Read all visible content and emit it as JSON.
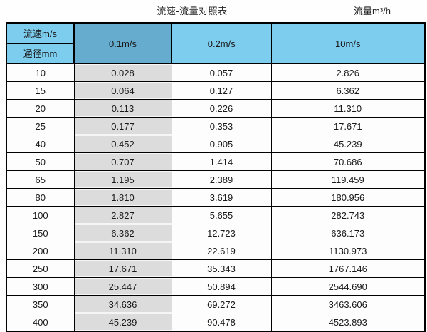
{
  "titles": {
    "main": "流速-流量对照表",
    "unit": "流量m³/h"
  },
  "table": {
    "corner_top": "流速m/s",
    "corner_bottom": "通径mm",
    "columns": [
      "0.1m/s",
      "0.2m/s",
      "10m/s"
    ],
    "rows": [
      {
        "diameter": "10",
        "values": [
          "0.028",
          "0.057",
          "2.826"
        ]
      },
      {
        "diameter": "15",
        "values": [
          "0.064",
          "0.127",
          "6.362"
        ]
      },
      {
        "diameter": "20",
        "values": [
          "0.113",
          "0.226",
          "11.310"
        ]
      },
      {
        "diameter": "25",
        "values": [
          "0.177",
          "0.353",
          "17.671"
        ]
      },
      {
        "diameter": "40",
        "values": [
          "0.452",
          "0.905",
          "45.239"
        ]
      },
      {
        "diameter": "50",
        "values": [
          "0.707",
          "1.414",
          "70.686"
        ]
      },
      {
        "diameter": "65",
        "values": [
          "1.195",
          "2.389",
          "119.459"
        ]
      },
      {
        "diameter": "80",
        "values": [
          "1.810",
          "3.619",
          "180.956"
        ]
      },
      {
        "diameter": "100",
        "values": [
          "2.827",
          "5.655",
          "282.743"
        ]
      },
      {
        "diameter": "150",
        "values": [
          "6.362",
          "12.723",
          "636.173"
        ]
      },
      {
        "diameter": "200",
        "values": [
          "11.310",
          "22.619",
          "1130.973"
        ]
      },
      {
        "diameter": "250",
        "values": [
          "17.671",
          "35.343",
          "1767.146"
        ]
      },
      {
        "diameter": "300",
        "values": [
          "25.447",
          "50.894",
          "2544.690"
        ]
      },
      {
        "diameter": "350",
        "values": [
          "34.636",
          "69.272",
          "3463.606"
        ]
      },
      {
        "diameter": "400",
        "values": [
          "45.239",
          "90.478",
          "4523.893"
        ]
      }
    ]
  },
  "colors": {
    "header_blue": "#7dcdef",
    "header_blue_dark": "#66accf",
    "column_gray": "#dcdcdc",
    "border": "#000000",
    "text": "#1a1a1a"
  },
  "chart_data": {
    "type": "table",
    "title": "流速-流量对照表",
    "unit_label": "流量m³/h",
    "row_header_label": "通径mm",
    "column_header_label": "流速m/s",
    "columns": [
      "0.1m/s",
      "0.2m/s",
      "10m/s"
    ],
    "diameters_mm": [
      10,
      15,
      20,
      25,
      40,
      50,
      65,
      80,
      100,
      150,
      200,
      250,
      300,
      350,
      400
    ],
    "flow_rates_m3h": [
      [
        0.028,
        0.057,
        2.826
      ],
      [
        0.064,
        0.127,
        6.362
      ],
      [
        0.113,
        0.226,
        11.31
      ],
      [
        0.177,
        0.353,
        17.671
      ],
      [
        0.452,
        0.905,
        45.239
      ],
      [
        0.707,
        1.414,
        70.686
      ],
      [
        1.195,
        2.389,
        119.459
      ],
      [
        1.81,
        3.619,
        180.956
      ],
      [
        2.827,
        5.655,
        282.743
      ],
      [
        6.362,
        12.723,
        636.173
      ],
      [
        11.31,
        22.619,
        1130.973
      ],
      [
        17.671,
        35.343,
        1767.146
      ],
      [
        25.447,
        50.894,
        2544.69
      ],
      [
        34.636,
        69.272,
        3463.606
      ],
      [
        45.239,
        90.478,
        4523.893
      ]
    ]
  }
}
